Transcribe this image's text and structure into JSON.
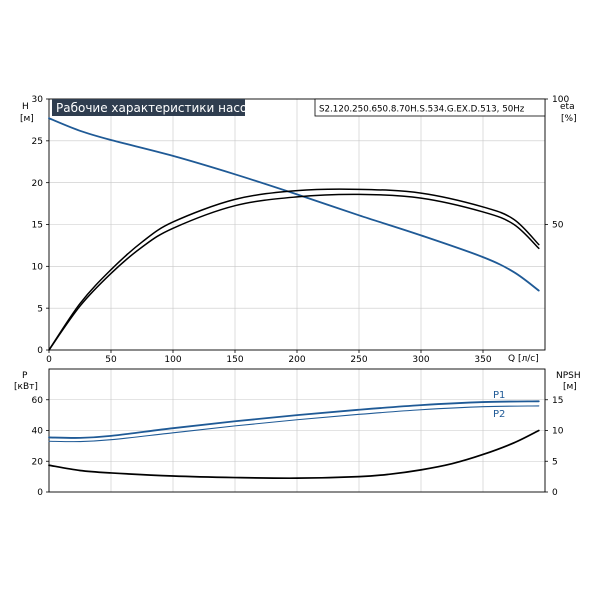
{
  "chart_data": [
    {
      "type": "line",
      "title": "Рабочие характеристики насоса",
      "model": "S2.120.250.650.8.70H.S.534.G.EX.D.513, 50Hz",
      "x_axis": {
        "label": "Q [л/с]",
        "range": [
          0,
          400
        ],
        "ticks": [
          "0",
          "50",
          "100",
          "150",
          "200",
          "250",
          "300",
          "350"
        ]
      },
      "y_left": {
        "label_top": "H",
        "label_unit": "[м]",
        "range": [
          0,
          30
        ],
        "ticks": [
          "0",
          "5",
          "10",
          "15",
          "20",
          "25",
          "30"
        ]
      },
      "y_right": {
        "label_top": "eta",
        "label_unit": "[%]",
        "range": [
          0,
          100
        ],
        "ticks": [
          "50",
          "100"
        ]
      },
      "grid": true,
      "series": [
        {
          "name": "",
          "axis": "left",
          "color": "#1f5a96",
          "x": [
            0,
            25,
            50,
            100,
            150,
            200,
            250,
            300,
            350,
            375,
            395
          ],
          "y": [
            27.7,
            26.2,
            25.1,
            23.2,
            21.0,
            18.6,
            16.1,
            13.7,
            11.1,
            9.3,
            7.1
          ]
        },
        {
          "name": "",
          "axis": "right",
          "color": "#000000",
          "x": [
            0,
            25,
            50,
            75,
            100,
            150,
            200,
            250,
            300,
            350,
            375,
            395
          ],
          "y": [
            0,
            18.5,
            32,
            43,
            51,
            60,
            63.5,
            64,
            62.5,
            57,
            52,
            42
          ]
        },
        {
          "name": "",
          "axis": "right",
          "color": "#000000",
          "x": [
            0,
            25,
            50,
            75,
            100,
            150,
            200,
            250,
            300,
            350,
            375,
            395
          ],
          "y": [
            0,
            17.5,
            30.5,
            41,
            48.5,
            57.5,
            61,
            62,
            60.5,
            55,
            50,
            40.5
          ]
        }
      ]
    },
    {
      "type": "line",
      "x_axis": {
        "range": [
          0,
          400
        ]
      },
      "y_left": {
        "label_top": "P",
        "label_unit": "[кВт]",
        "range": [
          0,
          80
        ],
        "ticks": [
          "0",
          "20",
          "40",
          "60"
        ]
      },
      "y_right": {
        "label_top": "NPSH",
        "label_unit": "[м]",
        "range": [
          0,
          20
        ],
        "ticks": [
          "0",
          "5",
          "10",
          "15"
        ]
      },
      "grid": true,
      "series": [
        {
          "name": "P1",
          "axis": "left",
          "color": "#1f5a96",
          "x": [
            0,
            25,
            50,
            100,
            150,
            200,
            250,
            300,
            350,
            395
          ],
          "y": [
            35.5,
            35.2,
            36.5,
            41.5,
            46.0,
            50.0,
            53.5,
            56.5,
            58.5,
            59.0
          ]
        },
        {
          "name": "P2",
          "axis": "left",
          "color": "#1f5a96",
          "x": [
            0,
            25,
            50,
            100,
            150,
            200,
            250,
            300,
            350,
            395
          ],
          "y": [
            33.0,
            32.8,
            34.0,
            38.5,
            43.0,
            47.0,
            50.5,
            53.5,
            55.5,
            56.0
          ]
        },
        {
          "name": "",
          "axis": "right",
          "color": "#000000",
          "x": [
            0,
            25,
            50,
            100,
            150,
            200,
            250,
            275,
            300,
            325,
            350,
            375,
            395
          ],
          "y": [
            4.35,
            3.5,
            3.1,
            2.6,
            2.35,
            2.25,
            2.5,
            2.9,
            3.6,
            4.6,
            6.1,
            8.0,
            10.0
          ]
        }
      ]
    }
  ]
}
